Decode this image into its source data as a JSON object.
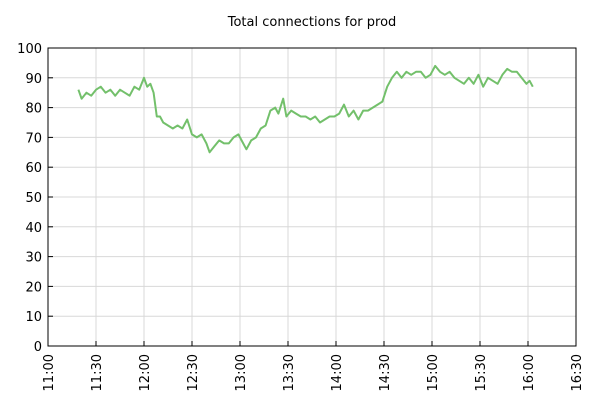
{
  "chart_data": {
    "type": "line",
    "title": "Total connections for prod",
    "x": [
      "11:19",
      "11:21",
      "11:24",
      "11:27",
      "11:30",
      "11:33",
      "11:36",
      "11:39",
      "11:42",
      "11:45",
      "11:48",
      "11:51",
      "11:54",
      "11:57",
      "12:00",
      "12:02",
      "12:04",
      "12:06",
      "12:08",
      "12:10",
      "12:12",
      "12:15",
      "12:18",
      "12:21",
      "12:24",
      "12:27",
      "12:30",
      "12:33",
      "12:36",
      "12:39",
      "12:41",
      "12:44",
      "12:47",
      "12:50",
      "12:53",
      "12:56",
      "12:59",
      "13:02",
      "13:04",
      "13:07",
      "13:10",
      "13:13",
      "13:16",
      "13:19",
      "13:22",
      "13:24",
      "13:27",
      "13:29",
      "13:32",
      "13:35",
      "13:38",
      "13:41",
      "13:44",
      "13:47",
      "13:50",
      "13:53",
      "13:56",
      "13:59",
      "14:02",
      "14:05",
      "14:08",
      "14:11",
      "14:14",
      "14:17",
      "14:20",
      "14:23",
      "14:26",
      "14:29",
      "14:32",
      "14:35",
      "14:38",
      "14:41",
      "14:44",
      "14:47",
      "14:50",
      "14:53",
      "14:56",
      "14:59",
      "15:02",
      "15:05",
      "15:08",
      "15:11",
      "15:14",
      "15:17",
      "15:20",
      "15:23",
      "15:26",
      "15:29",
      "15:32",
      "15:35",
      "15:38",
      "15:41",
      "15:44",
      "15:47",
      "15:50",
      "15:53",
      "15:56",
      "15:59",
      "16:01",
      "16:03"
    ],
    "series": [
      {
        "name": "prod",
        "color": "#73c06b",
        "values": [
          86,
          83,
          85,
          84,
          86,
          87,
          85,
          86,
          84,
          86,
          85,
          84,
          87,
          86,
          90,
          87,
          88,
          85,
          77,
          77,
          75,
          74,
          73,
          74,
          73,
          76,
          71,
          70,
          71,
          68,
          65,
          67,
          69,
          68,
          68,
          70,
          71,
          68,
          66,
          69,
          70,
          73,
          74,
          79,
          80,
          78,
          83,
          77,
          79,
          78,
          77,
          77,
          76,
          77,
          75,
          76,
          77,
          77,
          78,
          81,
          77,
          79,
          76,
          79,
          79,
          80,
          81,
          82,
          87,
          90,
          92,
          90,
          92,
          91,
          92,
          92,
          90,
          91,
          94,
          92,
          91,
          92,
          90,
          89,
          88,
          90,
          88,
          91,
          87,
          90,
          89,
          88,
          91,
          93,
          92,
          92,
          90,
          88,
          89,
          87
        ]
      }
    ],
    "xlim": [
      "11:00",
      "16:30"
    ],
    "xticks": [
      "11:00",
      "11:30",
      "12:00",
      "12:30",
      "13:00",
      "13:30",
      "14:00",
      "14:30",
      "15:00",
      "15:30",
      "16:00",
      "16:30"
    ],
    "ylim": [
      0,
      100
    ],
    "yticks": [
      0,
      10,
      20,
      30,
      40,
      50,
      60,
      70,
      80,
      90,
      100
    ],
    "grid": true
  }
}
